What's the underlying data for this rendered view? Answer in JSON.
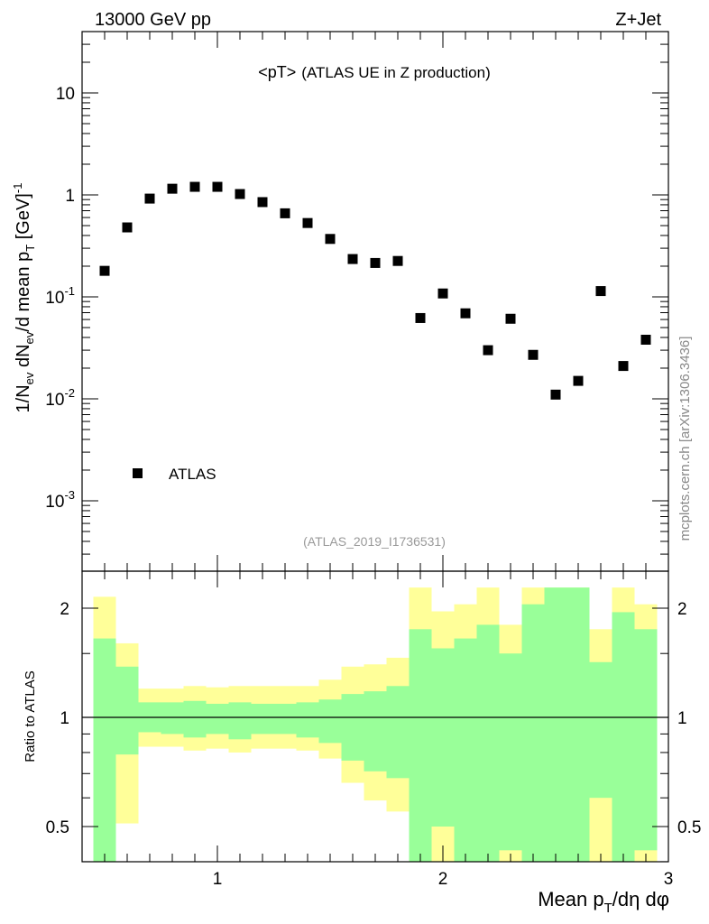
{
  "header": {
    "left": "13000 GeV pp",
    "right": "Z+Jet",
    "plot_title": "<pT>",
    "plot_subtitle": "(ATLAS UE in Z production)",
    "analysis_id": "(ATLAS_2019_I1736531)",
    "side_note": "mcplots.cern.ch [arXiv:1306.3436]"
  },
  "chart_data": [
    {
      "type": "scatter",
      "ylabel": "1/N_ev dN_ev/d mean p_T [GeV]^-1",
      "xlabel": "Mean p_T/dη dφ",
      "yscale": "log",
      "xlim": [
        0.4,
        3.0
      ],
      "ylim": [
        0.00015,
        40
      ],
      "ytick_labels": [
        "10^-3",
        "10^-2",
        "10^-1",
        "1",
        "10"
      ],
      "legend": {
        "label": "ATLAS",
        "placement": "bottom-left"
      },
      "series": [
        {
          "name": "ATLAS",
          "x": [
            0.5,
            0.6,
            0.7,
            0.8,
            0.9,
            1.0,
            1.1,
            1.2,
            1.3,
            1.4,
            1.5,
            1.6,
            1.7,
            1.8,
            1.9,
            2.0,
            2.1,
            2.2,
            2.3,
            2.4,
            2.5,
            2.6,
            2.7,
            2.8,
            2.9
          ],
          "y": [
            0.18,
            0.48,
            0.92,
            1.15,
            1.2,
            1.2,
            1.02,
            0.85,
            0.66,
            0.53,
            0.37,
            0.235,
            0.215,
            0.225,
            0.062,
            0.108,
            0.069,
            0.03,
            0.061,
            0.027,
            0.011,
            0.015,
            0.114,
            0.021,
            0.038
          ]
        }
      ]
    },
    {
      "type": "area",
      "ylabel": "Ratio to ATLAS",
      "xlabel": "Mean p_T/dη dφ",
      "xlim": [
        0.4,
        3.0
      ],
      "ylim": [
        0.35,
        2.28
      ],
      "x_tick_labels": [
        "1",
        "2",
        "3"
      ],
      "y_tick_labels": [
        "0.5",
        "1",
        "2"
      ],
      "reference_line": 1,
      "bin_edges": [
        0.45,
        0.55,
        0.65,
        0.75,
        0.85,
        0.95,
        1.05,
        1.15,
        1.25,
        1.35,
        1.45,
        1.55,
        1.65,
        1.75,
        1.85,
        1.95,
        2.05,
        2.15,
        2.25,
        2.35,
        2.45,
        2.55,
        2.65,
        2.75,
        2.85,
        2.95
      ],
      "bands": [
        {
          "color": "#ffff99",
          "lower": [
            0.35,
            0.51,
            0.83,
            0.83,
            0.81,
            0.82,
            0.8,
            0.82,
            0.82,
            0.81,
            0.77,
            0.66,
            0.59,
            0.55,
            0.35,
            0.35,
            0.35,
            0.35,
            0.35,
            0.35,
            0.35,
            0.35,
            0.35,
            0.35,
            0.35
          ],
          "upper": [
            2.15,
            1.6,
            1.2,
            1.2,
            1.22,
            1.21,
            1.22,
            1.22,
            1.22,
            1.22,
            1.27,
            1.38,
            1.4,
            1.46,
            2.28,
            1.96,
            2.05,
            2.28,
            1.8,
            2.28,
            2.28,
            2.28,
            1.75,
            2.28,
            2.05
          ]
        },
        {
          "color": "#99ff99",
          "lower": [
            0.37,
            0.79,
            0.91,
            0.9,
            0.88,
            0.9,
            0.87,
            0.9,
            0.9,
            0.88,
            0.85,
            0.76,
            0.71,
            0.68,
            0.35,
            0.5,
            0.35,
            0.35,
            0.43,
            0.35,
            0.35,
            0.35,
            0.6,
            0.35,
            0.43
          ],
          "upper": [
            1.65,
            1.38,
            1.1,
            1.1,
            1.11,
            1.09,
            1.1,
            1.09,
            1.09,
            1.1,
            1.12,
            1.16,
            1.18,
            1.22,
            1.75,
            1.55,
            1.65,
            1.8,
            1.5,
            2.05,
            2.28,
            2.28,
            1.42,
            1.95,
            1.75
          ]
        }
      ]
    }
  ]
}
